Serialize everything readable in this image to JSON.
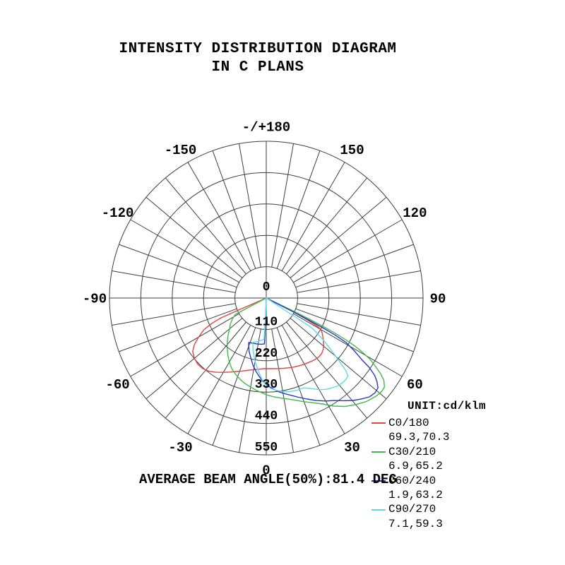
{
  "title": {
    "line1": "INTENSITY DISTRIBUTION DIAGRAM",
    "line2": "IN C PLANS"
  },
  "footer": {
    "beam_angle_text": "AVERAGE BEAM ANGLE(50%):81.4 DEG"
  },
  "legend": {
    "unit_label": "UNIT:cd/klm",
    "items": [
      {
        "label": "C0/180",
        "values": "69.3,70.3",
        "color": "#e04343"
      },
      {
        "label": "C30/210",
        "values": "6.9,65.2",
        "color": "#3fbb4d"
      },
      {
        "label": "C60/240",
        "values": "1.9,63.2",
        "color": "#2a35c4"
      },
      {
        "label": "C90/270",
        "values": "7.1,59.3",
        "color": "#5fd9e8"
      }
    ]
  },
  "chart_data": {
    "type": "line",
    "subtype": "polar-intensity-distribution",
    "unit": "cd/klm",
    "radial_ticks": [
      0,
      110,
      220,
      330,
      440,
      550
    ],
    "radial_max": 550,
    "spoke_step_deg": 10,
    "grid_color": "#3d3d3d",
    "angle_labels": [
      {
        "deg": 180,
        "text": "-/+180"
      },
      {
        "deg": 150,
        "text": "150"
      },
      {
        "deg": 120,
        "text": "120"
      },
      {
        "deg": 90,
        "text": "90"
      },
      {
        "deg": 60,
        "text": "60"
      },
      {
        "deg": 30,
        "text": "30"
      },
      {
        "deg": 0,
        "text": "0"
      },
      {
        "deg": -30,
        "text": "-30"
      },
      {
        "deg": -60,
        "text": "-60"
      },
      {
        "deg": -90,
        "text": "-90"
      },
      {
        "deg": -120,
        "text": "-120"
      },
      {
        "deg": -150,
        "text": "-150"
      }
    ],
    "series": [
      {
        "name": "C0/180",
        "color": "#e04343",
        "points": [
          [
            -67,
            0
          ],
          [
            -66.6,
            100
          ],
          [
            -66.4,
            173
          ],
          [
            -65,
            212
          ],
          [
            -63,
            246
          ],
          [
            -60,
            274
          ],
          [
            -57,
            301
          ],
          [
            -54,
            319
          ],
          [
            -50,
            329
          ],
          [
            -46,
            334
          ],
          [
            -42,
            333
          ],
          [
            -38,
            326
          ],
          [
            -34,
            314
          ],
          [
            -30,
            301
          ],
          [
            -26,
            289
          ],
          [
            -22,
            278
          ],
          [
            -18,
            269
          ],
          [
            -14,
            261
          ],
          [
            -10,
            255
          ],
          [
            -6,
            251
          ],
          [
            -2,
            248
          ],
          [
            2,
            248
          ],
          [
            6,
            249
          ],
          [
            10,
            251
          ],
          [
            14,
            254
          ],
          [
            18,
            257
          ],
          [
            22,
            261
          ],
          [
            26,
            264
          ],
          [
            30,
            268
          ],
          [
            34,
            271
          ],
          [
            38,
            275
          ],
          [
            42,
            277
          ],
          [
            45,
            275
          ],
          [
            48,
            269
          ],
          [
            51,
            259
          ],
          [
            54,
            247
          ],
          [
            56,
            239
          ],
          [
            58,
            231
          ],
          [
            60,
            222
          ],
          [
            61,
            207
          ],
          [
            62,
            163
          ],
          [
            63,
            112
          ],
          [
            64,
            57
          ],
          [
            65,
            0
          ]
        ]
      },
      {
        "name": "C30/210",
        "color": "#3fbb4d",
        "points": [
          [
            -63,
            0
          ],
          [
            -62.5,
            62
          ],
          [
            -62,
            123
          ],
          [
            -58,
            141
          ],
          [
            -54,
            156
          ],
          [
            -50,
            168
          ],
          [
            -46,
            186
          ],
          [
            -42,
            204
          ],
          [
            -38,
            223
          ],
          [
            -34,
            241
          ],
          [
            -30,
            259
          ],
          [
            -26,
            276
          ],
          [
            -22,
            288
          ],
          [
            -18,
            299
          ],
          [
            -14,
            309
          ],
          [
            -10,
            317
          ],
          [
            -6,
            326
          ],
          [
            -3,
            332
          ],
          [
            0,
            339
          ],
          [
            4,
            347
          ],
          [
            8,
            354
          ],
          [
            12,
            362
          ],
          [
            16,
            373
          ],
          [
            20,
            387
          ],
          [
            24,
            402
          ],
          [
            28,
            421
          ],
          [
            32,
            447
          ],
          [
            36,
            470
          ],
          [
            40,
            488
          ],
          [
            44,
            505
          ],
          [
            48,
            516
          ],
          [
            51,
            521
          ],
          [
            53,
            519
          ],
          [
            55,
            504
          ],
          [
            56.5,
            481
          ],
          [
            58,
            451
          ],
          [
            59.5,
            421
          ],
          [
            60.5,
            391
          ],
          [
            61.5,
            356
          ],
          [
            62.3,
            316
          ],
          [
            63,
            266
          ],
          [
            63.5,
            216
          ],
          [
            64,
            161
          ],
          [
            64.4,
            103
          ],
          [
            64.8,
            0
          ]
        ]
      },
      {
        "name": "C60/240",
        "color": "#2a35c4",
        "points": [
          [
            -1,
            0
          ],
          [
            -1.8,
            60
          ],
          [
            -2.1,
            120
          ],
          [
            -2.3,
            161
          ],
          [
            -6,
            163
          ],
          [
            -10,
            164
          ],
          [
            -14,
            165
          ],
          [
            -18,
            166
          ],
          [
            -21.6,
            168
          ],
          [
            -18,
            196
          ],
          [
            -14.5,
            217
          ],
          [
            -11,
            241
          ],
          [
            -7.6,
            262
          ],
          [
            -5,
            277
          ],
          [
            -2.4,
            292
          ],
          [
            0,
            302
          ],
          [
            2.3,
            312
          ],
          [
            5,
            322
          ],
          [
            7.7,
            332
          ],
          [
            11,
            342
          ],
          [
            14.2,
            352
          ],
          [
            18,
            366
          ],
          [
            22,
            382
          ],
          [
            26,
            400
          ],
          [
            30,
            417
          ],
          [
            33.5,
            431
          ],
          [
            37,
            451
          ],
          [
            40.3,
            471
          ],
          [
            43,
            485
          ],
          [
            46.2,
            501
          ],
          [
            49,
            506
          ],
          [
            51.2,
            503
          ],
          [
            53,
            486
          ],
          [
            54.5,
            467
          ],
          [
            56,
            436
          ],
          [
            57.1,
            401
          ],
          [
            59,
            361
          ],
          [
            60.9,
            320
          ],
          [
            61.8,
            271
          ],
          [
            62.3,
            221
          ],
          [
            62.6,
            163
          ],
          [
            63,
            101
          ],
          [
            63.3,
            0
          ]
        ]
      },
      {
        "name": "C90/270",
        "color": "#5fd9e8",
        "points": [
          [
            -1,
            0
          ],
          [
            -2,
            60
          ],
          [
            -2.8,
            110
          ],
          [
            -3.1,
            145
          ],
          [
            -7,
            150
          ],
          [
            -11,
            155
          ],
          [
            -14,
            159
          ],
          [
            -17,
            162
          ],
          [
            -14,
            191
          ],
          [
            -10,
            226
          ],
          [
            -6,
            259
          ],
          [
            -3,
            286
          ],
          [
            0,
            306
          ],
          [
            3,
            318
          ],
          [
            6,
            325
          ],
          [
            10,
            333
          ],
          [
            14,
            338
          ],
          [
            18,
            341
          ],
          [
            22.6,
            341
          ],
          [
            26.2,
            354
          ],
          [
            30,
            371
          ],
          [
            33,
            382
          ],
          [
            36,
            390
          ],
          [
            39,
            397
          ],
          [
            42,
            400
          ],
          [
            44.5,
            399
          ],
          [
            46.3,
            396
          ],
          [
            47.5,
            381
          ],
          [
            48.4,
            358
          ],
          [
            50,
            319
          ],
          [
            51.7,
            284
          ],
          [
            53.5,
            251
          ],
          [
            55,
            221
          ],
          [
            56.5,
            198
          ],
          [
            56.9,
            180
          ],
          [
            57,
            120
          ],
          [
            57,
            60
          ],
          [
            57,
            0
          ]
        ]
      }
    ]
  }
}
